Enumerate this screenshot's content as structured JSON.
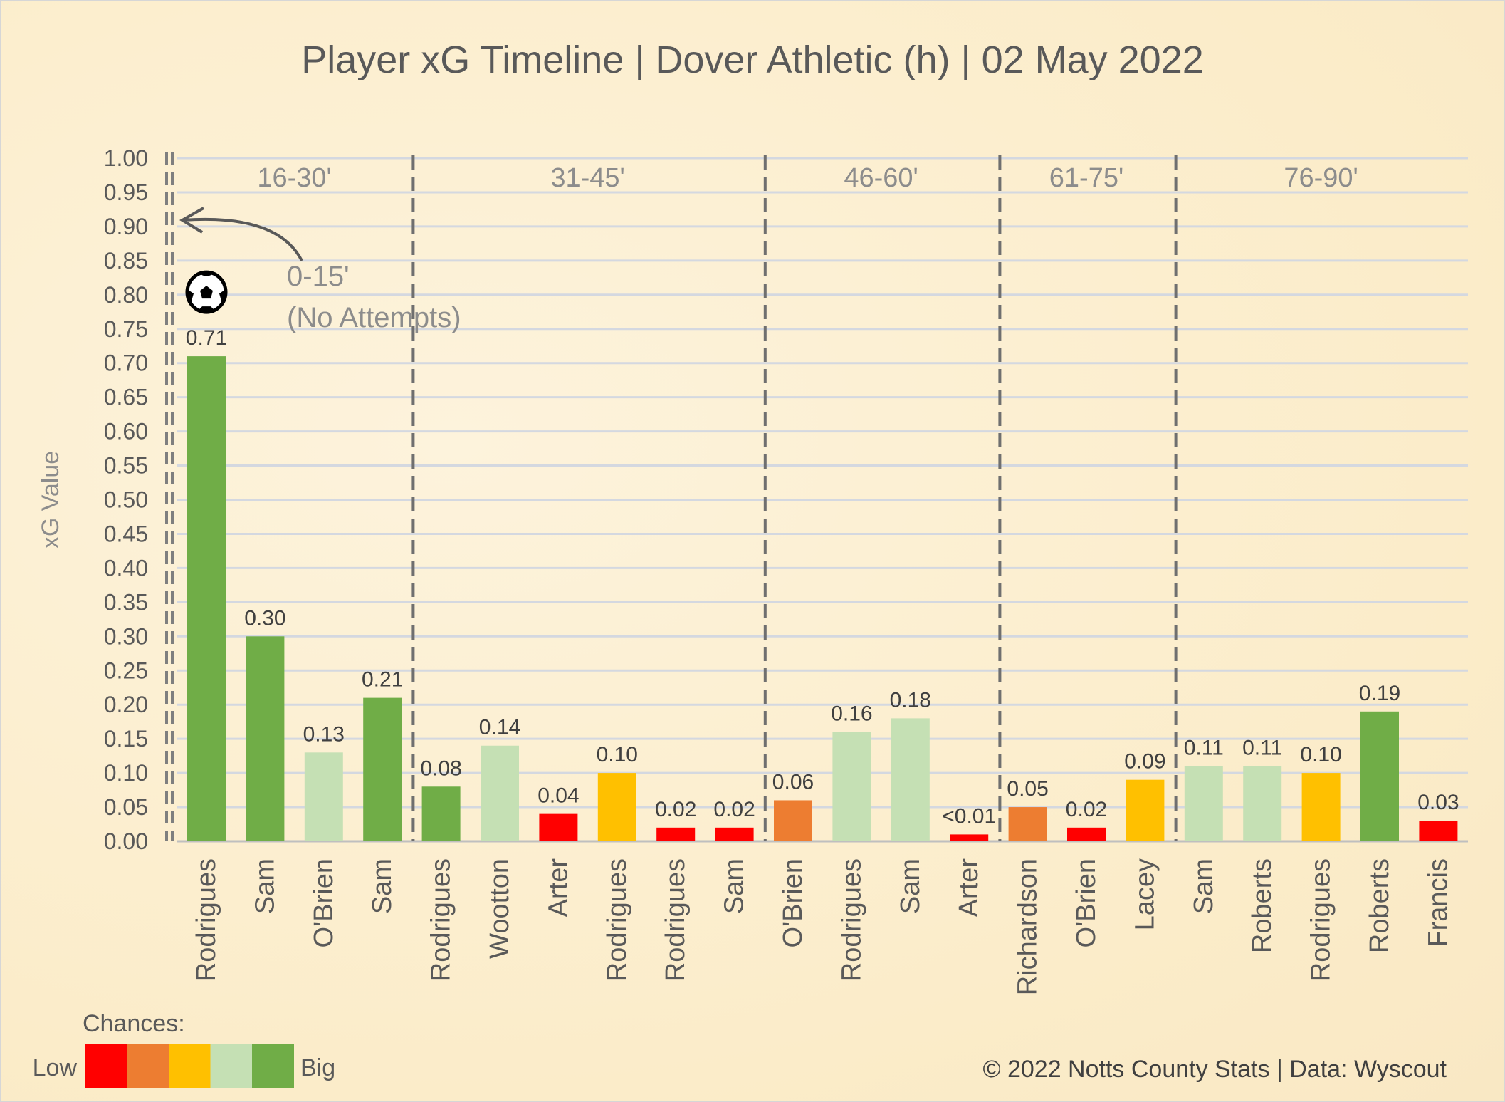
{
  "chart_data": {
    "type": "bar",
    "title": "Player xG Timeline | Dover Athletic (h) | 02 May 2022",
    "xlabel": "",
    "ylabel": "xG Value",
    "ylim": [
      0,
      1.0
    ],
    "yticks": [
      "0.00",
      "0.05",
      "0.10",
      "0.15",
      "0.20",
      "0.25",
      "0.30",
      "0.35",
      "0.40",
      "0.45",
      "0.50",
      "0.55",
      "0.60",
      "0.65",
      "0.70",
      "0.75",
      "0.80",
      "0.85",
      "0.90",
      "0.95",
      "1.00"
    ],
    "grid": true,
    "categories": [
      "Rodrigues",
      "Sam",
      "O'Brien",
      "Sam",
      "Rodrigues",
      "Wootton",
      "Arter",
      "Rodrigues",
      "Rodrigues",
      "Sam",
      "O'Brien",
      "Rodrigues",
      "Sam",
      "Arter",
      "Richardson",
      "O'Brien",
      "Lacey",
      "Sam",
      "Roberts",
      "Rodrigues",
      "Roberts",
      "Francis"
    ],
    "values": [
      0.71,
      0.3,
      0.13,
      0.21,
      0.08,
      0.14,
      0.04,
      0.1,
      0.02,
      0.02,
      0.06,
      0.16,
      0.18,
      0.01,
      0.05,
      0.02,
      0.09,
      0.11,
      0.11,
      0.1,
      0.19,
      0.03
    ],
    "labels": [
      "0.71",
      "0.30",
      "0.13",
      "0.21",
      "0.08",
      "0.14",
      "0.04",
      "0.10",
      "0.02",
      "0.02",
      "0.06",
      "0.16",
      "0.18",
      "<0.01",
      "0.05",
      "0.02",
      "0.09",
      "0.11",
      "0.11",
      "0.10",
      "0.19",
      "0.03"
    ],
    "chance_level": [
      5,
      5,
      4,
      5,
      5,
      4,
      1,
      3,
      1,
      1,
      2,
      4,
      4,
      1,
      2,
      1,
      3,
      4,
      4,
      3,
      5,
      1
    ],
    "goals": [
      0
    ],
    "periods": [
      {
        "label": "16-30'",
        "start": 0,
        "end": 3
      },
      {
        "label": "31-45'",
        "start": 4,
        "end": 9
      },
      {
        "label": "46-60'",
        "start": 10,
        "end": 13
      },
      {
        "label": "61-75'",
        "start": 14,
        "end": 16
      },
      {
        "label": "76-90'",
        "start": 17,
        "end": 21
      }
    ],
    "annotation": {
      "line1": "0-15'",
      "line2": "(No Attempts)"
    },
    "legend": {
      "title": "Chances:",
      "low": "Low",
      "high": "Big",
      "colors": [
        "#FF0000",
        "#ED7D31",
        "#FFC000",
        "#C5E0B4",
        "#70AD47"
      ],
      "placement": "bottom-left"
    },
    "credit": "© 2022 Notts County Stats | Data: Wyscout"
  }
}
